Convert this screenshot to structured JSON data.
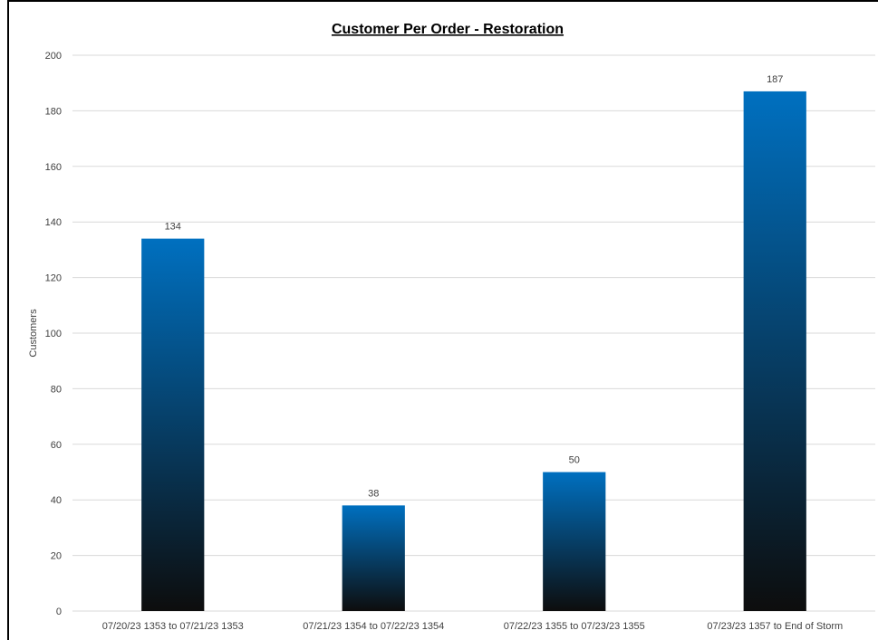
{
  "chart_data": {
    "type": "bar",
    "title": "Customer Per Order - Restoration",
    "xlabel": "",
    "ylabel": "Customers",
    "ylim": [
      0,
      200
    ],
    "ytick_step": 20,
    "yticks": [
      "0",
      "20",
      "40",
      "60",
      "80",
      "100",
      "120",
      "140",
      "160",
      "180",
      "200"
    ],
    "categories": [
      "07/20/23 1353 to 07/21/23 1353",
      "07/21/23 1354 to 07/22/23 1354",
      "07/22/23 1355 to 07/23/23 1355",
      "07/23/23 1357 to End of Storm"
    ],
    "values": [
      134,
      38,
      50,
      187
    ],
    "data_labels": [
      "134",
      "38",
      "50",
      "187"
    ],
    "grid": true,
    "legend": "none",
    "colors": {
      "bar_top": "#0070c0",
      "bar_bottom": "#0d0d0d",
      "grid": "#d9d9d9",
      "text": "#404040"
    }
  }
}
